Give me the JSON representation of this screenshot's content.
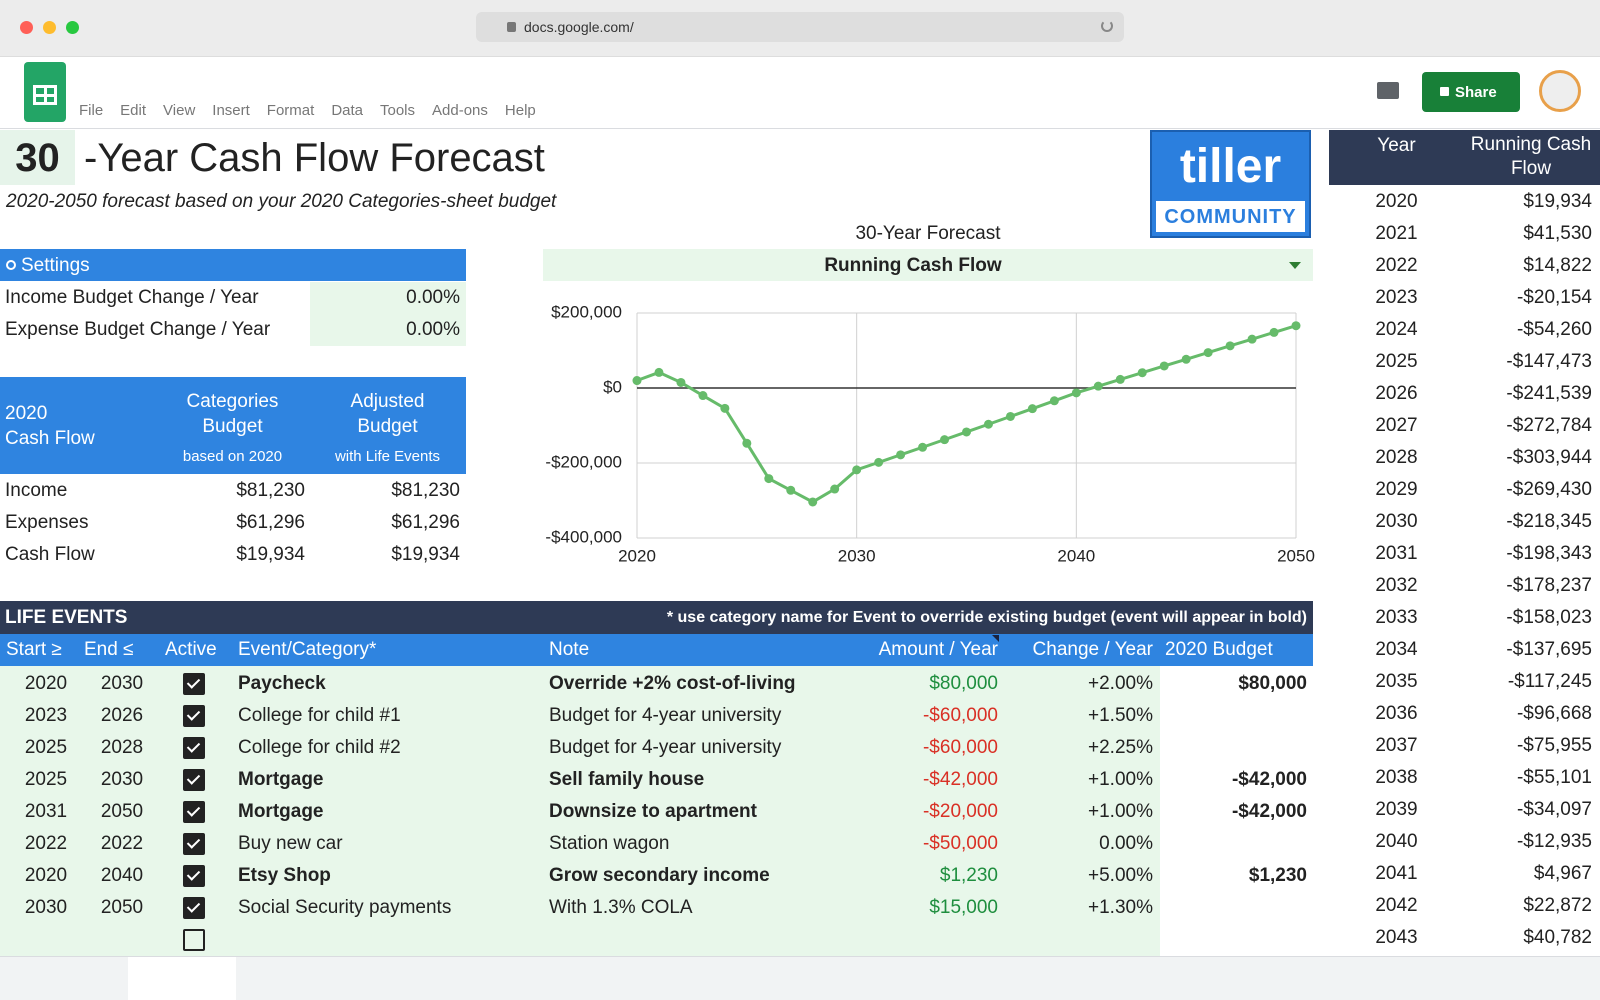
{
  "browser": {
    "url": "docs.google.com/"
  },
  "menu": [
    "File",
    "Edit",
    "View",
    "Insert",
    "Format",
    "Data",
    "Tools",
    "Add-ons",
    "Help"
  ],
  "share": "Share",
  "title": {
    "years": "30",
    "text": "-Year Cash Flow Forecast",
    "subtitle": "2020-2050 forecast based on your 2020 Categories-sheet budget"
  },
  "logo": {
    "name": "tiller",
    "tag": "COMMUNITY"
  },
  "settings": {
    "title": "Settings",
    "rows": [
      {
        "label": "Income Budget Change / Year",
        "value": "0.00%"
      },
      {
        "label": "Expense Budget Change / Year",
        "value": "0.00%"
      }
    ]
  },
  "cash_flow": {
    "title": [
      "2020",
      "Cash Flow"
    ],
    "columns": [
      {
        "title": [
          "Categories",
          "Budget"
        ],
        "note": "based on 2020"
      },
      {
        "title": [
          "Adjusted",
          "Budget"
        ],
        "note": "with Life Events"
      }
    ],
    "rows": [
      [
        "Income",
        "$81,230",
        "$81,230"
      ],
      [
        "Expenses",
        "$61,296",
        "$61,296"
      ],
      [
        "Cash Flow",
        "$19,934",
        "$19,934"
      ]
    ]
  },
  "chart_data": {
    "type": "line",
    "title": "30-Year Forecast",
    "subtitle": "Running Cash Flow",
    "color": "#66bb6a",
    "x": [
      2020,
      2021,
      2022,
      2023,
      2024,
      2025,
      2026,
      2027,
      2028,
      2029,
      2030,
      2031,
      2032,
      2033,
      2034,
      2035,
      2036,
      2037,
      2038,
      2039,
      2040,
      2041,
      2042,
      2043,
      2044,
      2045,
      2046,
      2047,
      2048,
      2049,
      2050
    ],
    "values": [
      19934,
      41530,
      14822,
      -20154,
      -54260,
      -147473,
      -241539,
      -272784,
      -303944,
      -269430,
      -218345,
      -198343,
      -178237,
      -158023,
      -137695,
      -117245,
      -96668,
      -75955,
      -55101,
      -34097,
      -12935,
      4967,
      22872,
      40782,
      58700,
      76600,
      94500,
      112400,
      130300,
      148200,
      166100
    ],
    "xlim": [
      2020,
      2050
    ],
    "xticks": [
      2020,
      2030,
      2040,
      2050
    ],
    "ylim": [
      -400000,
      200000
    ],
    "yticks": [
      {
        "value": -400000,
        "label": "-$400,000"
      },
      {
        "value": -200000,
        "label": "-$200,000"
      },
      {
        "value": 0,
        "label": "$0"
      },
      {
        "value": 200000,
        "label": "$200,000"
      }
    ],
    "grid": true
  },
  "life_events": {
    "title": "LIFE EVENTS",
    "note": "* use category name for Event to override existing budget (event will appear in bold)",
    "columns": [
      "Start ≥",
      "End ≤",
      "Active",
      "Event/Category*",
      "Note",
      "Amount / Year",
      "Change / Year",
      "2020 Budget"
    ],
    "rows": [
      {
        "start": "2020",
        "end": "2030",
        "active": true,
        "event": "Paycheck",
        "note": "Override +2% cost-of-living",
        "amount": "$80,000",
        "change": "+2.00%",
        "budget": "$80,000",
        "bold": true,
        "amount_color": "#1e8e3e"
      },
      {
        "start": "2023",
        "end": "2026",
        "active": true,
        "event": "College for child #1",
        "note": "Budget for 4-year university",
        "amount": "-$60,000",
        "change": "+1.50%",
        "bold": false,
        "amount_color": "#d93025"
      },
      {
        "start": "2025",
        "end": "2028",
        "active": true,
        "event": "College for child #2",
        "note": "Budget for 4-year university",
        "amount": "-$60,000",
        "change": "+2.25%",
        "bold": false,
        "amount_color": "#d93025"
      },
      {
        "start": "2025",
        "end": "2030",
        "active": true,
        "event": "Mortgage",
        "note": "Sell family house",
        "amount": "-$42,000",
        "change": "+1.00%",
        "budget": "-$42,000",
        "bold": true,
        "amount_color": "#d93025"
      },
      {
        "start": "2031",
        "end": "2050",
        "active": true,
        "event": "Mortgage",
        "note": "Downsize to apartment",
        "amount": "-$20,000",
        "change": "+1.00%",
        "budget": "-$42,000",
        "bold": true,
        "amount_color": "#d93025"
      },
      {
        "start": "2022",
        "end": "2022",
        "active": true,
        "event": "Buy new car",
        "note": "Station wagon",
        "amount": "-$50,000",
        "change": "0.00%",
        "bold": false,
        "amount_color": "#d93025"
      },
      {
        "start": "2020",
        "end": "2040",
        "active": true,
        "event": "Etsy Shop",
        "note": "Grow secondary income",
        "amount": "$1,230",
        "change": "+5.00%",
        "budget": "$1,230",
        "bold": true,
        "amount_color": "#1e8e3e"
      },
      {
        "start": "2030",
        "end": "2050",
        "active": true,
        "event": "Social Security payments",
        "note": "With 1.3% COLA",
        "amount": "$15,000",
        "change": "+1.30%",
        "bold": false,
        "amount_color": "#1e8e3e"
      },
      {
        "active": false
      }
    ]
  },
  "running": {
    "columns": [
      "Year",
      "Running Cash Flow"
    ],
    "rows": [
      [
        "2020",
        "$19,934"
      ],
      [
        "2021",
        "$41,530"
      ],
      [
        "2022",
        "$14,822"
      ],
      [
        "2023",
        "-$20,154"
      ],
      [
        "2024",
        "-$54,260"
      ],
      [
        "2025",
        "-$147,473"
      ],
      [
        "2026",
        "-$241,539"
      ],
      [
        "2027",
        "-$272,784"
      ],
      [
        "2028",
        "-$303,944"
      ],
      [
        "2029",
        "-$269,430"
      ],
      [
        "2030",
        "-$218,345"
      ],
      [
        "2031",
        "-$198,343"
      ],
      [
        "2032",
        "-$178,237"
      ],
      [
        "2033",
        "-$158,023"
      ],
      [
        "2034",
        "-$137,695"
      ],
      [
        "2035",
        "-$117,245"
      ],
      [
        "2036",
        "-$96,668"
      ],
      [
        "2037",
        "-$75,955"
      ],
      [
        "2038",
        "-$55,101"
      ],
      [
        "2039",
        "-$34,097"
      ],
      [
        "2040",
        "-$12,935"
      ],
      [
        "2041",
        "$4,967"
      ],
      [
        "2042",
        "$22,872"
      ],
      [
        "2043",
        "$40,782"
      ]
    ]
  }
}
